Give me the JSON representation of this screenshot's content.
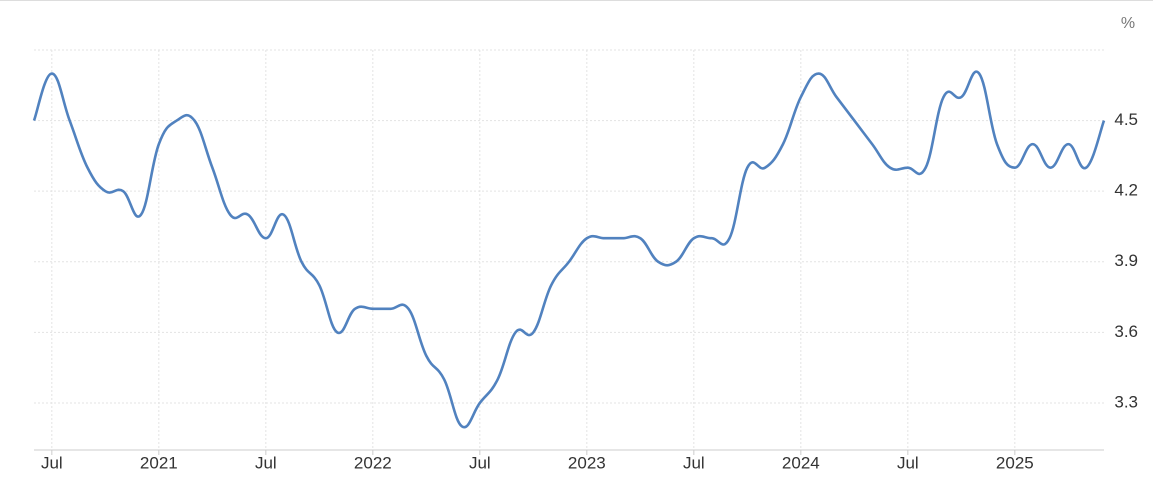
{
  "chart_data": {
    "type": "line",
    "y_label": "%",
    "categories": [
      null,
      "Jul",
      null,
      null,
      null,
      null,
      null,
      "2021",
      null,
      null,
      null,
      null,
      null,
      "Jul",
      null,
      null,
      null,
      null,
      null,
      "2022",
      null,
      null,
      null,
      null,
      null,
      "Jul",
      null,
      null,
      null,
      null,
      null,
      "2023",
      null,
      null,
      null,
      null,
      null,
      "Jul",
      null,
      null,
      null,
      null,
      null,
      "2024",
      null,
      null,
      null,
      null,
      null,
      "Jul",
      null,
      null,
      null,
      null,
      null,
      "2025",
      null,
      null,
      null,
      null,
      null
    ],
    "series": [
      {
        "color": "#5182bf",
        "values": [
          4.5,
          4.7,
          4.5,
          4.3,
          4.2,
          4.2,
          4.1,
          4.4,
          4.5,
          4.5,
          4.3,
          4.1,
          4.1,
          4.0,
          4.1,
          3.9,
          3.8,
          3.6,
          3.7,
          3.7,
          3.7,
          3.7,
          3.5,
          3.4,
          3.2,
          3.3,
          3.4,
          3.6,
          3.6,
          3.8,
          3.9,
          4.0,
          4.0,
          4.0,
          4.0,
          3.9,
          3.9,
          4.0,
          4.0,
          4.0,
          4.3,
          4.3,
          4.4,
          4.6,
          4.7,
          4.6,
          4.5,
          4.4,
          4.3,
          4.3,
          4.3,
          4.6,
          4.6,
          4.7,
          4.4,
          4.3,
          4.4,
          4.3,
          4.4,
          4.3,
          4.5
        ]
      }
    ],
    "ylim": [
      3.1,
      4.8
    ],
    "yticks": [
      3.3,
      3.6,
      3.9,
      4.2,
      4.5
    ],
    "grid": true
  }
}
